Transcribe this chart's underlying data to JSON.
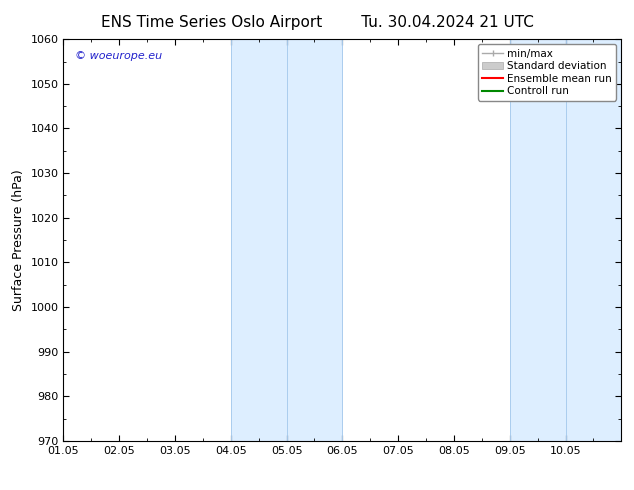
{
  "title": "ENS Time Series Oslo Airport",
  "title2": "Tu. 30.04.2024 21 UTC",
  "ylabel": "Surface Pressure (hPa)",
  "xlabel": "",
  "ylim": [
    970,
    1060
  ],
  "yticks": [
    970,
    980,
    990,
    1000,
    1010,
    1020,
    1030,
    1040,
    1050,
    1060
  ],
  "xlim_start": 0,
  "xlim_end": 10,
  "xtick_labels": [
    "01.05",
    "02.05",
    "03.05",
    "04.05",
    "05.05",
    "06.05",
    "07.05",
    "08.05",
    "09.05",
    "10.05"
  ],
  "xtick_positions": [
    0,
    1,
    2,
    3,
    4,
    5,
    6,
    7,
    8,
    9
  ],
  "shaded_bands": [
    {
      "x_start": 3.0,
      "x_end": 4.0,
      "color": "#ddeeff",
      "edge_color": "#aaccdd"
    },
    {
      "x_start": 4.0,
      "x_end": 5.0,
      "color": "#ddeeff",
      "edge_color": "#aaccdd"
    },
    {
      "x_start": 8.0,
      "x_end": 9.0,
      "color": "#ddeeff",
      "edge_color": "#aaccdd"
    },
    {
      "x_start": 9.0,
      "x_end": 10.0,
      "color": "#ddeeff",
      "edge_color": "#aaccdd"
    }
  ],
  "band_color": "#ddeeff",
  "band_edge_color": "#aaccee",
  "watermark_text": "© woeurope.eu",
  "watermark_color": "#2222cc",
  "legend_items": [
    {
      "label": "min/max",
      "color": "#aaaaaa",
      "type": "line_with_caps"
    },
    {
      "label": "Standard deviation",
      "color": "#cccccc",
      "type": "bar"
    },
    {
      "label": "Ensemble mean run",
      "color": "#ff0000",
      "type": "line"
    },
    {
      "label": "Controll run",
      "color": "#008800",
      "type": "line"
    }
  ],
  "background_color": "#ffffff",
  "title_fontsize": 11,
  "axis_fontsize": 9,
  "tick_fontsize": 8
}
